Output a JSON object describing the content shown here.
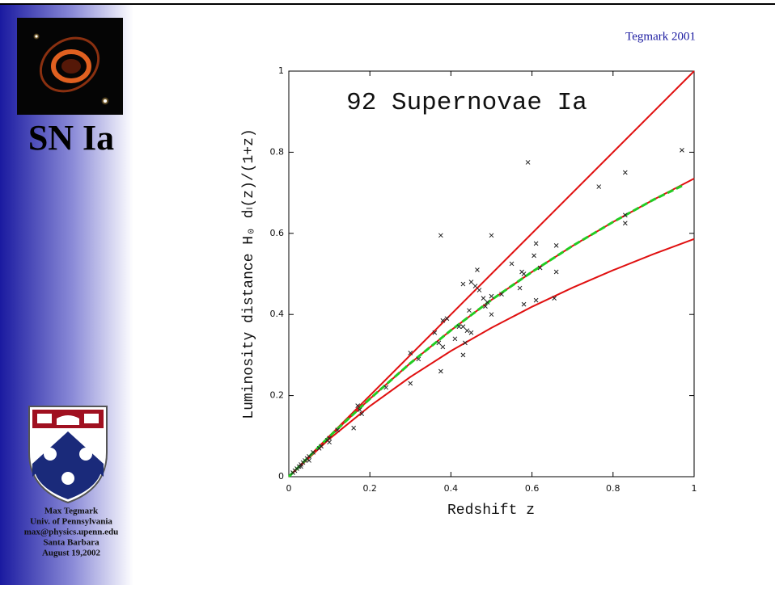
{
  "slide": {
    "citation": "Tegmark 2001",
    "heading": "SN Ia",
    "footer": [
      "Max Tegmark",
      "Univ. of Pennsylvania",
      "max@physics.upenn.edu",
      "Santa Barbara",
      "August 19,2002"
    ]
  },
  "chart_data": {
    "type": "scatter",
    "title": "92 Supernovae Ia",
    "xlabel": "Redshift z",
    "ylabel": "Luminosity distance H₀ dₗ(z)/(1+z)",
    "xlim": [
      0,
      1
    ],
    "ylim": [
      0,
      1
    ],
    "xticks": [
      0,
      0.2,
      0.4,
      0.6,
      0.8,
      1
    ],
    "yticks": [
      0,
      0.2,
      0.4,
      0.6,
      0.8,
      1
    ],
    "series": [
      {
        "type": "line",
        "color": "#e01010",
        "x": [
          0,
          1
        ],
        "values": [
          0,
          1
        ]
      },
      {
        "type": "line",
        "color": "#e01010",
        "x": [
          0,
          0.1,
          0.2,
          0.3,
          0.4,
          0.5,
          0.6,
          0.7,
          0.8,
          0.9,
          1
        ],
        "values": [
          0,
          0.099,
          0.192,
          0.28,
          0.361,
          0.436,
          0.505,
          0.569,
          0.628,
          0.683,
          0.735
        ]
      },
      {
        "type": "line",
        "color": "#e01010",
        "x": [
          0,
          0.1,
          0.2,
          0.3,
          0.4,
          0.5,
          0.6,
          0.7,
          0.8,
          0.9,
          1
        ],
        "values": [
          0,
          0.093,
          0.174,
          0.246,
          0.31,
          0.367,
          0.419,
          0.466,
          0.509,
          0.549,
          0.586
        ]
      },
      {
        "type": "line",
        "color": "#22cc22",
        "dashed": true,
        "x": [
          0,
          0.1,
          0.2,
          0.3,
          0.4,
          0.5,
          0.6,
          0.7,
          0.8,
          0.9,
          0.97
        ],
        "values": [
          0,
          0.099,
          0.192,
          0.28,
          0.361,
          0.436,
          0.505,
          0.569,
          0.628,
          0.683,
          0.717
        ]
      },
      {
        "type": "scatter",
        "color": "#222222",
        "x": [
          0.97,
          0.59,
          0.83,
          0.765,
          0.375,
          0.5,
          0.83,
          0.83,
          0.61,
          0.66,
          0.55,
          0.465,
          0.575,
          0.605,
          0.62,
          0.66,
          0.58,
          0.45,
          0.46,
          0.43,
          0.47,
          0.5,
          0.48,
          0.49,
          0.525,
          0.57,
          0.485,
          0.445,
          0.5,
          0.58,
          0.61,
          0.655,
          0.38,
          0.39,
          0.42,
          0.43,
          0.44,
          0.45,
          0.41,
          0.36,
          0.37,
          0.38,
          0.435,
          0.43,
          0.375,
          0.3,
          0.32,
          0.3,
          0.24,
          0.17,
          0.175,
          0.18,
          0.16,
          0.12,
          0.1,
          0.095,
          0.1,
          0.08,
          0.075,
          0.06,
          0.05,
          0.045,
          0.04,
          0.035,
          0.03,
          0.025,
          0.02,
          0.015,
          0.01,
          0.05,
          0.03
        ],
        "values": [
          0.805,
          0.775,
          0.75,
          0.715,
          0.595,
          0.595,
          0.645,
          0.625,
          0.575,
          0.57,
          0.525,
          0.51,
          0.505,
          0.545,
          0.515,
          0.505,
          0.5,
          0.48,
          0.47,
          0.475,
          0.46,
          0.445,
          0.44,
          0.43,
          0.45,
          0.465,
          0.42,
          0.41,
          0.4,
          0.425,
          0.435,
          0.44,
          0.385,
          0.39,
          0.37,
          0.37,
          0.36,
          0.355,
          0.34,
          0.355,
          0.33,
          0.32,
          0.33,
          0.3,
          0.26,
          0.305,
          0.29,
          0.23,
          0.22,
          0.175,
          0.165,
          0.155,
          0.12,
          0.115,
          0.095,
          0.09,
          0.085,
          0.075,
          0.07,
          0.06,
          0.05,
          0.045,
          0.04,
          0.035,
          0.03,
          0.025,
          0.02,
          0.015,
          0.01,
          0.04,
          0.025
        ]
      }
    ]
  }
}
